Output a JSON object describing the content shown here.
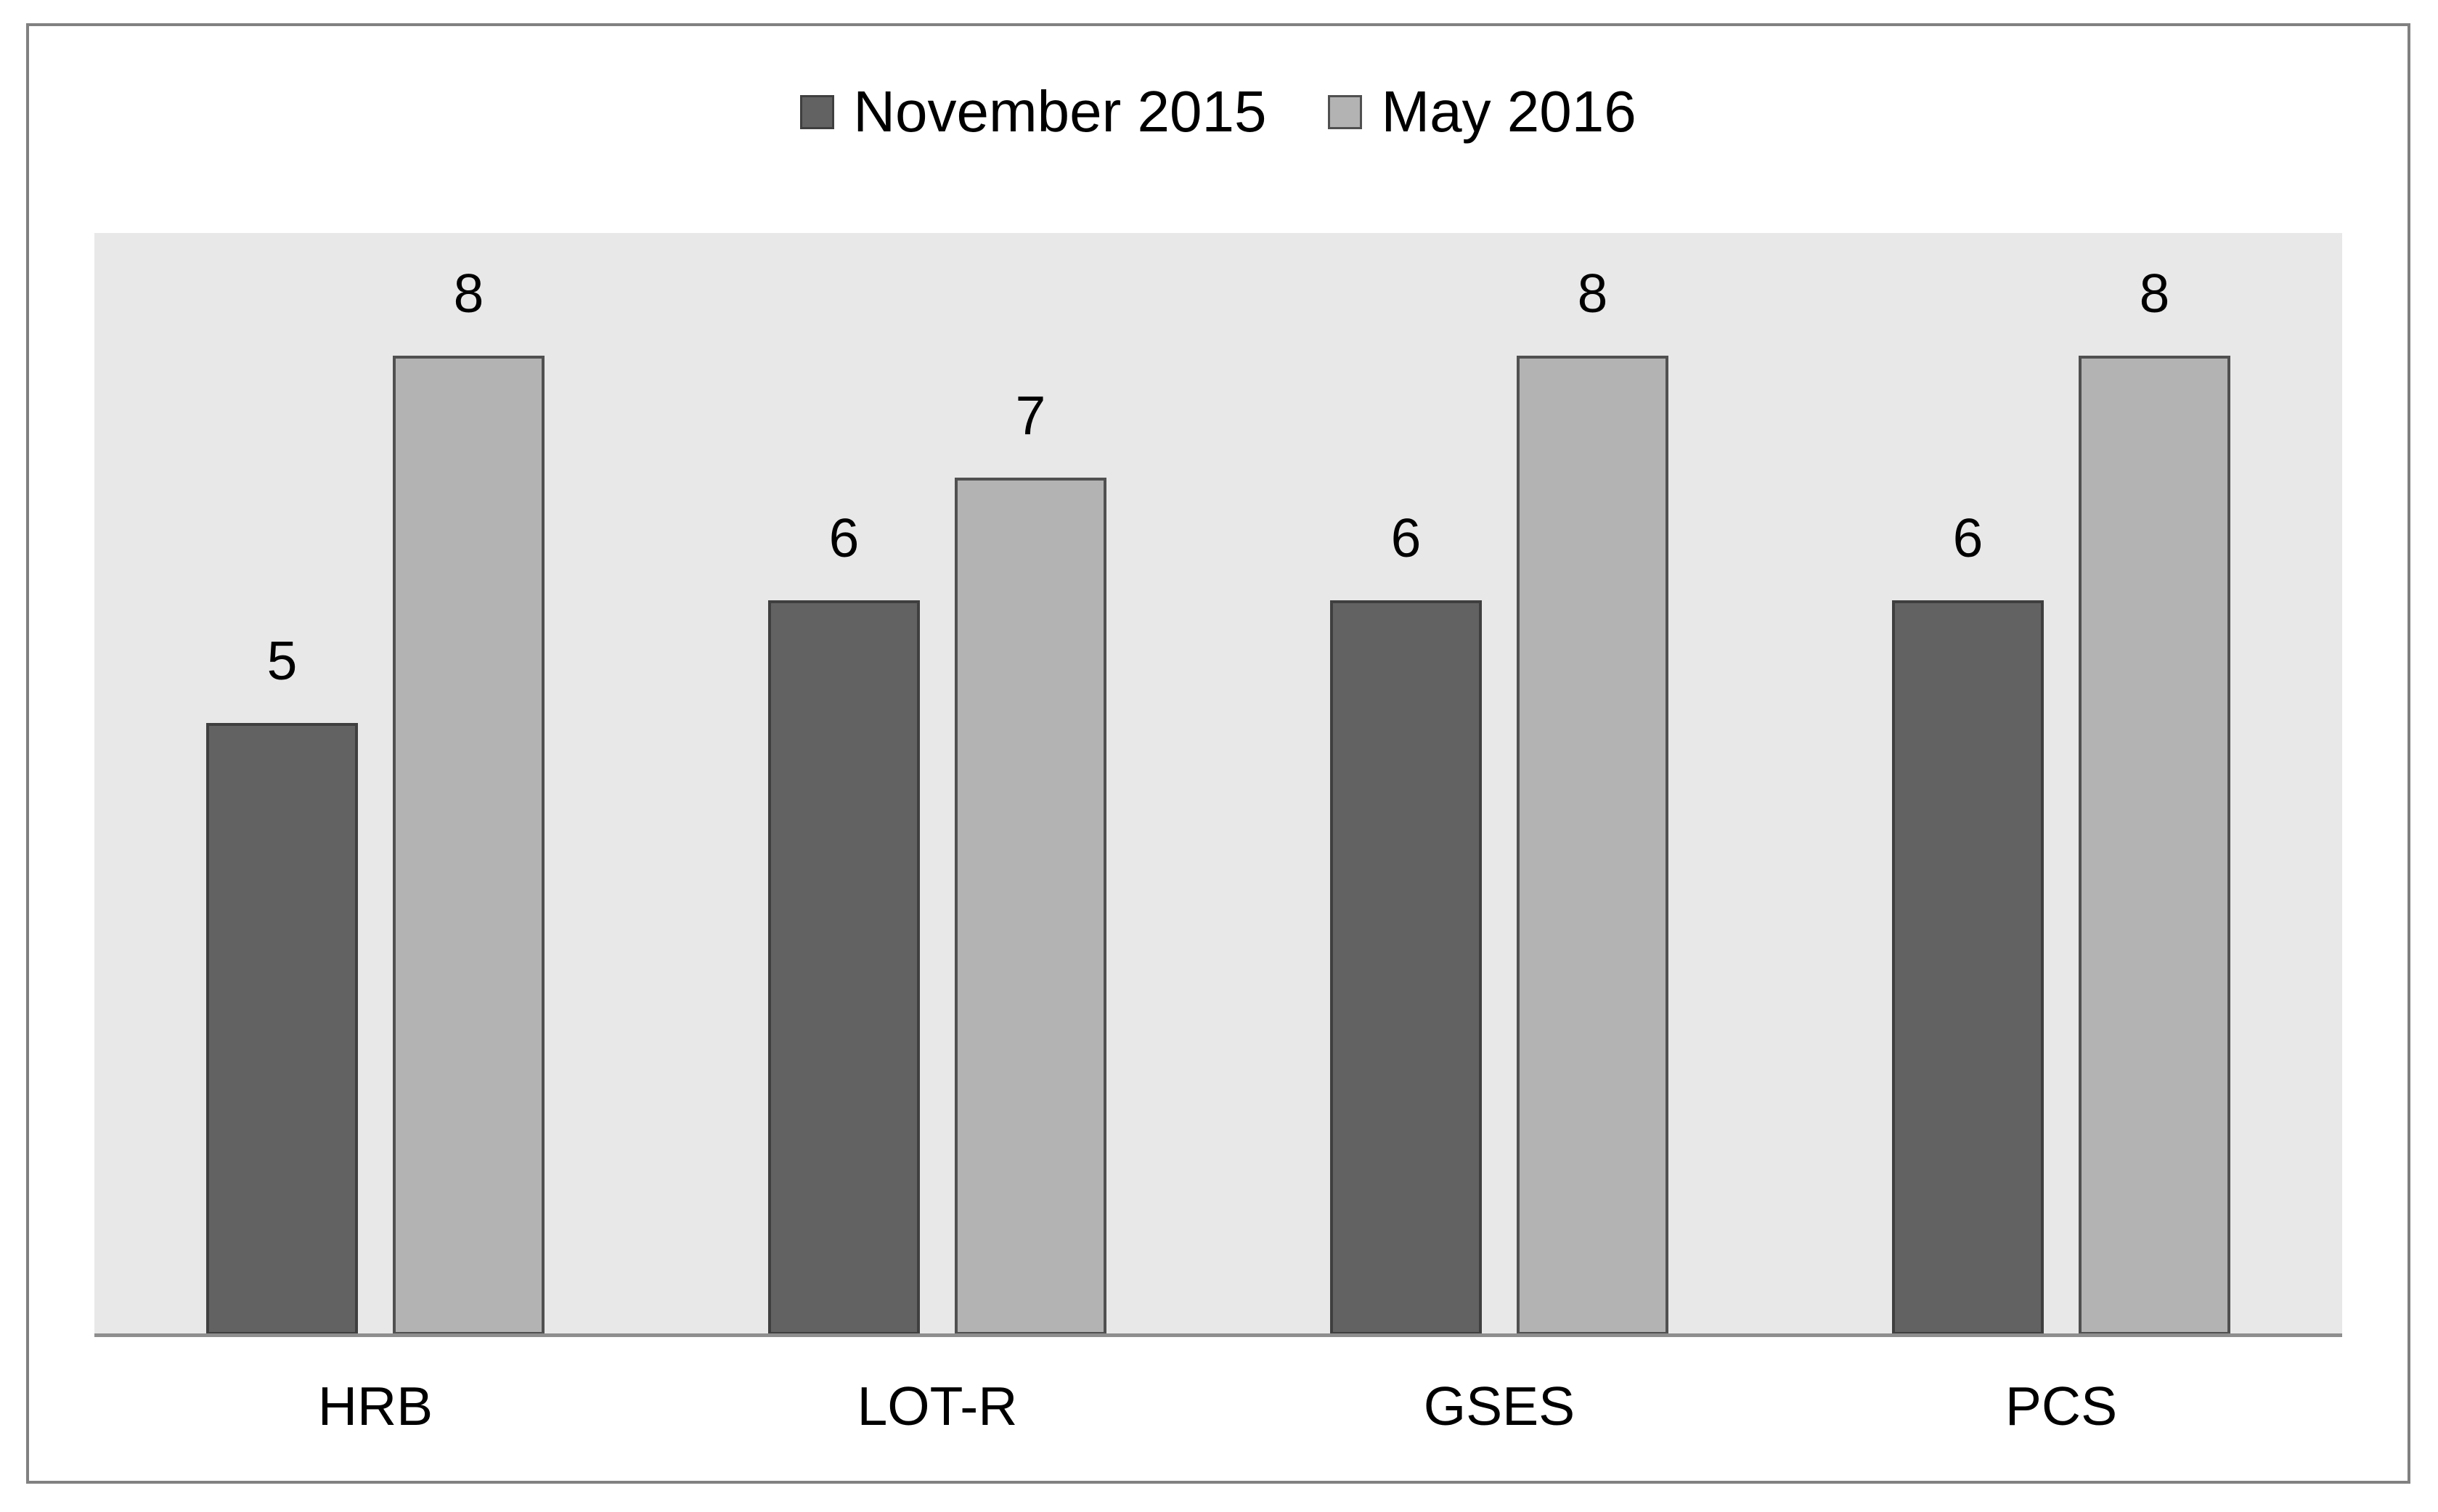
{
  "chart_data": {
    "type": "bar",
    "categories": [
      "HRB",
      "LOT-R",
      "GSES",
      "PCS"
    ],
    "series": [
      {
        "name": "November 2015",
        "values": [
          5,
          6,
          6,
          6
        ],
        "fill": "#626262",
        "stroke": "#3f3f3f"
      },
      {
        "name": "May 2016",
        "values": [
          8,
          7,
          8,
          8
        ],
        "fill": "#b3b3b3",
        "stroke": "#505050"
      }
    ],
    "title": "",
    "xlabel": "",
    "ylabel": "",
    "ylim": [
      0,
      9
    ],
    "grid": false,
    "legend_position": "top",
    "data_labels": true,
    "plot_background": "#e8e8e8",
    "axis_line_color": "#8e8e8e",
    "chart_border_color": "#818181",
    "label_color": "#000000"
  }
}
